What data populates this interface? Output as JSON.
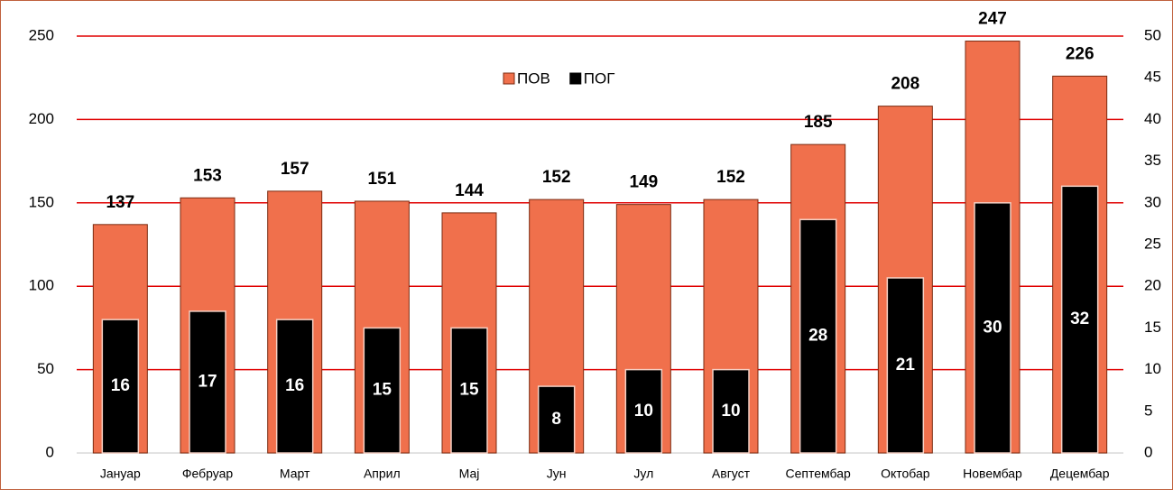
{
  "chart_data": {
    "type": "bar",
    "categories": [
      "Јануар",
      "Фебруар",
      "Март",
      "Април",
      "Мај",
      "Јун",
      "Јул",
      "Август",
      "Септембар",
      "Октобар",
      "Новембар",
      "Децембар"
    ],
    "series": [
      {
        "name": "ПОВ",
        "color": "#f0704c",
        "values": [
          137,
          153,
          157,
          151,
          144,
          152,
          149,
          152,
          185,
          208,
          247,
          226
        ]
      },
      {
        "name": "ПОГ",
        "color": "#000000",
        "axis": "y2",
        "values": [
          16,
          17,
          16,
          15,
          15,
          8,
          10,
          10,
          28,
          21,
          30,
          32
        ]
      }
    ],
    "ylim": [
      0,
      250
    ],
    "yticks": [
      0,
      50,
      100,
      150,
      200,
      250
    ],
    "y2lim": [
      0,
      50
    ],
    "y2ticks": [
      0,
      5,
      10,
      15,
      20,
      25,
      30,
      35,
      40,
      45,
      50
    ],
    "grid": true,
    "legend": "top"
  }
}
